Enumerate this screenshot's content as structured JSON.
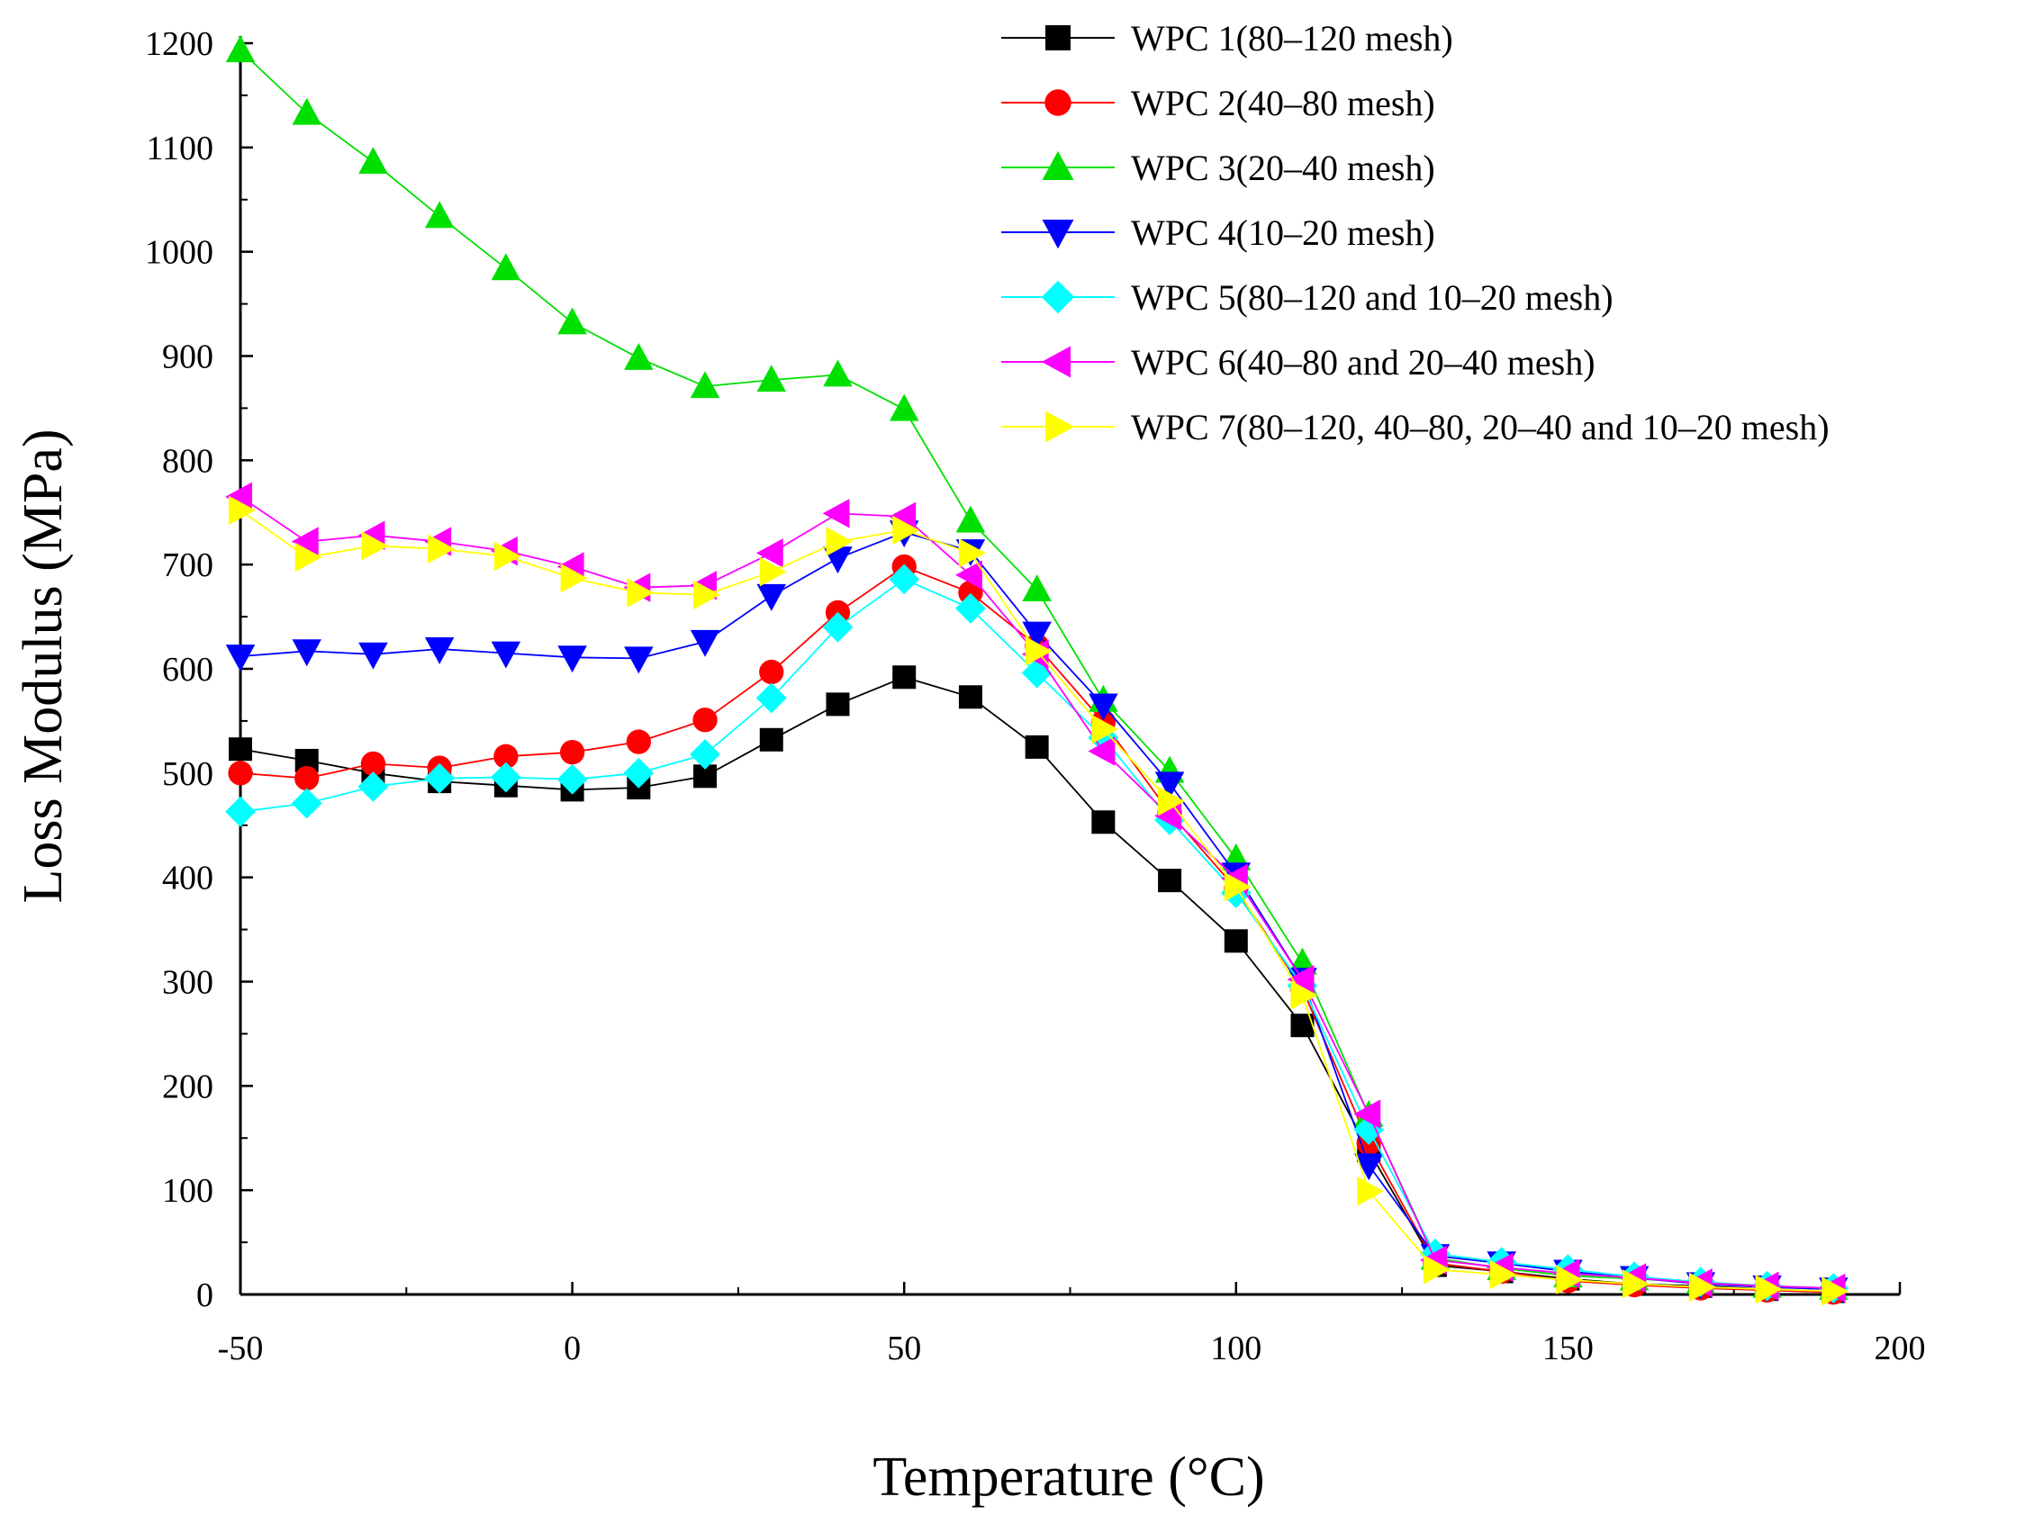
{
  "chart_data": {
    "type": "line",
    "title": "",
    "xlabel": "Temperature (°C)",
    "ylabel": "Loss Modulus (MPa)",
    "xlim": [
      -50,
      200
    ],
    "ylim": [
      0,
      1200
    ],
    "x_ticks": [
      -50,
      0,
      50,
      100,
      150,
      200
    ],
    "y_ticks": [
      0,
      100,
      200,
      300,
      400,
      500,
      600,
      700,
      800,
      900,
      1000,
      1100,
      1200
    ],
    "x_tick_labels": [
      "-50",
      "0",
      "50",
      "100",
      "150",
      "200"
    ],
    "y_tick_labels": [
      "0",
      "100",
      "200",
      "300",
      "400",
      "500",
      "600",
      "700",
      "800",
      "900",
      "1000",
      "1100",
      "1200"
    ],
    "grid": false,
    "legend_position": "top-right",
    "x": [
      -50,
      -40,
      -30,
      -20,
      -10,
      0,
      10,
      20,
      30,
      40,
      50,
      60,
      70,
      80,
      90,
      100,
      110,
      120,
      130,
      140,
      150,
      160,
      170,
      180,
      190
    ],
    "series": [
      {
        "name": "WPC 1(80–120 mesh)",
        "color": "#000000",
        "marker": "square",
        "values": [
          523,
          512,
          500,
          492,
          488,
          484,
          486,
          497,
          532,
          566,
          592,
          573,
          525,
          453,
          397,
          339,
          258,
          138,
          28,
          22,
          15,
          10,
          8,
          5,
          3
        ]
      },
      {
        "name": "WPC 2(40–80 mesh)",
        "color": "#ff0000",
        "marker": "circle",
        "values": [
          500,
          495,
          509,
          505,
          516,
          520,
          530,
          551,
          597,
          654,
          698,
          673,
          622,
          549,
          462,
          389,
          293,
          145,
          30,
          22,
          13,
          9,
          6,
          4,
          2
        ]
      },
      {
        "name": "WPC 3(20–40 mesh)",
        "color": "#00e000",
        "marker": "triangle-up",
        "values": [
          1193,
          1133,
          1086,
          1034,
          984,
          932,
          898,
          871,
          877,
          882,
          849,
          742,
          676,
          570,
          502,
          418,
          318,
          172,
          35,
          25,
          18,
          15,
          12,
          8,
          6
        ]
      },
      {
        "name": "WPC 4(10–20 mesh)",
        "color": "#0000ff",
        "marker": "triangle-down",
        "values": [
          612,
          617,
          614,
          619,
          615,
          611,
          610,
          626,
          670,
          706,
          731,
          713,
          634,
          565,
          490,
          403,
          302,
          124,
          37,
          30,
          22,
          16,
          10,
          7,
          5
        ]
      },
      {
        "name": "WPC 5(80–120 and 10–20 mesh)",
        "color": "#00ffff",
        "marker": "diamond",
        "values": [
          463,
          471,
          487,
          495,
          496,
          494,
          500,
          518,
          572,
          640,
          686,
          658,
          596,
          534,
          455,
          385,
          296,
          158,
          39,
          31,
          24,
          17,
          12,
          8,
          6
        ]
      },
      {
        "name": "WPC 6(40–80 and 20–40 mesh)",
        "color": "#ff00ff",
        "marker": "triangle-left",
        "values": [
          765,
          722,
          728,
          722,
          713,
          698,
          678,
          680,
          711,
          749,
          746,
          690,
          614,
          521,
          459,
          399,
          302,
          173,
          33,
          26,
          20,
          16,
          11,
          8,
          6
        ]
      },
      {
        "name": "WPC 7(80–120, 40–80, 20–40 and 10–20 mesh)",
        "color": "#ffff00",
        "marker": "triangle-right",
        "values": [
          752,
          707,
          718,
          715,
          708,
          687,
          673,
          671,
          693,
          722,
          733,
          711,
          617,
          542,
          473,
          391,
          287,
          99,
          24,
          19,
          14,
          10,
          7,
          5,
          3
        ]
      }
    ]
  }
}
